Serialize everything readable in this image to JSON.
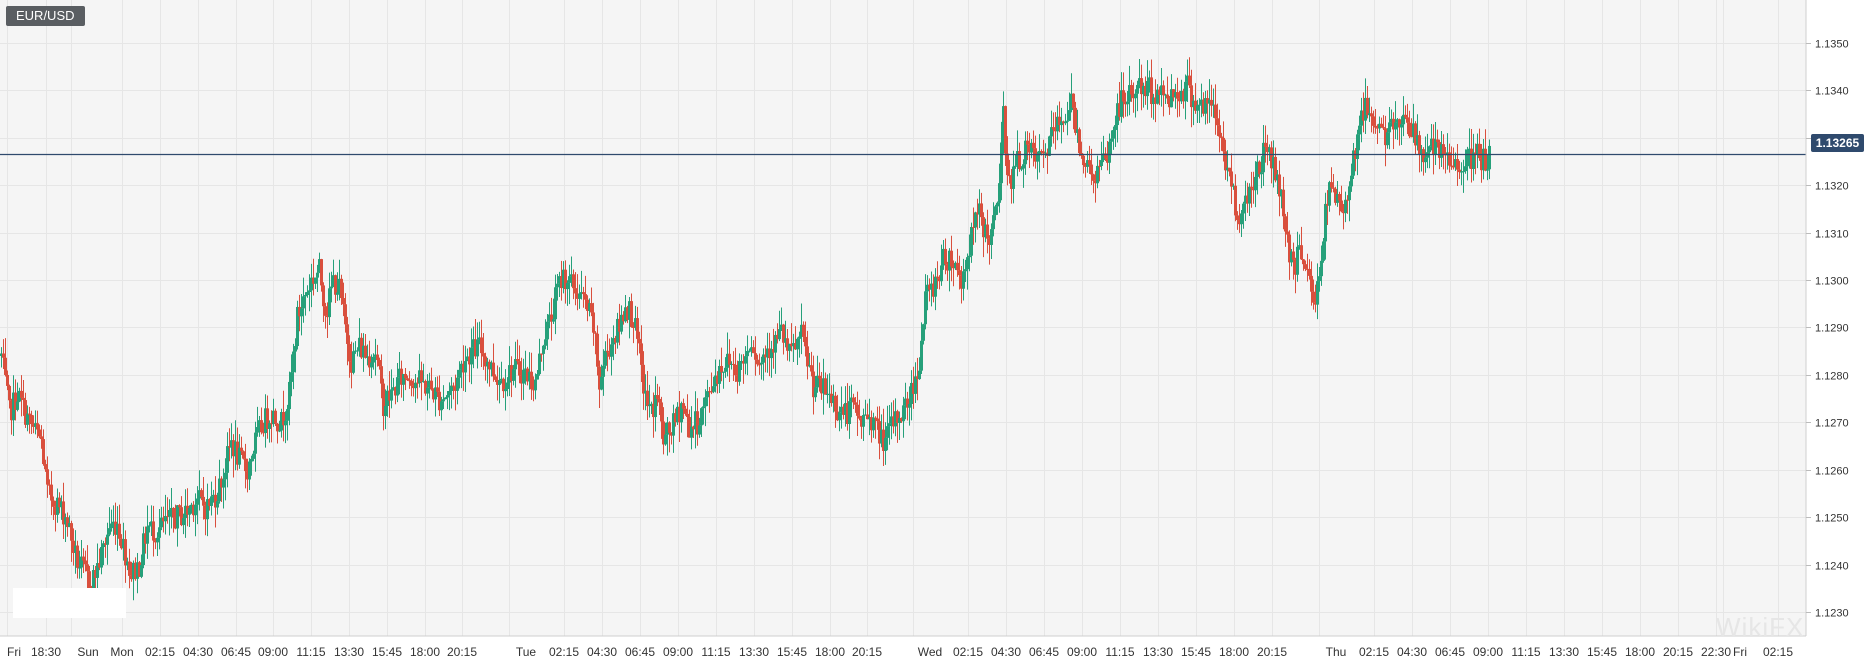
{
  "symbol": "EUR/USD",
  "last_price": "1.13265",
  "watermark": "WikiFX",
  "colors": {
    "up": "#26a07a",
    "down": "#d94f3d",
    "current_line": "#2f4a6d",
    "grid": "#e6e6e6",
    "background": "#f5f5f5"
  },
  "chart_data": {
    "type": "candlestick",
    "title": "EUR/USD",
    "ylim": [
      1.1225,
      1.1359
    ],
    "y_ticks": [
      "1.1230",
      "1.1240",
      "1.1250",
      "1.1260",
      "1.1270",
      "1.1280",
      "1.1290",
      "1.1300",
      "1.1310",
      "1.1320",
      "1.1330",
      "1.1340",
      "1.1350"
    ],
    "x_ticks": [
      "Fri",
      "18:30",
      "Sun",
      "Mon",
      "02:15",
      "04:30",
      "06:45",
      "09:00",
      "11:15",
      "13:30",
      "15:45",
      "18:00",
      "20:15",
      "Tue",
      "02:15",
      "04:30",
      "06:45",
      "09:00",
      "11:15",
      "13:30",
      "15:45",
      "18:00",
      "20:15",
      "Wed",
      "02:15",
      "04:30",
      "06:45",
      "09:00",
      "11:15",
      "13:30",
      "15:45",
      "18:00",
      "20:15",
      "Thu",
      "02:15",
      "04:30",
      "06:45",
      "09:00",
      "11:15",
      "13:30",
      "15:45",
      "18:00",
      "20:15",
      "22:30",
      "Fri",
      "02:15"
    ],
    "current_price": 1.13265,
    "grid": true,
    "close_path": [
      [
        0,
        1.1284
      ],
      [
        8,
        1.1272
      ],
      [
        16,
        1.1276
      ],
      [
        28,
        1.127
      ],
      [
        40,
        1.1266
      ],
      [
        46,
        1.1255
      ],
      [
        55,
        1.1253
      ],
      [
        65,
        1.125
      ],
      [
        75,
        1.1241
      ],
      [
        84,
        1.1238
      ],
      [
        90,
        1.1236
      ],
      [
        100,
        1.1242
      ],
      [
        108,
        1.1248
      ],
      [
        116,
        1.1249
      ],
      [
        122,
        1.1244
      ],
      [
        130,
        1.1238
      ],
      [
        138,
        1.124
      ],
      [
        146,
        1.1248
      ],
      [
        155,
        1.1247
      ],
      [
        165,
        1.1249
      ],
      [
        175,
        1.125
      ],
      [
        185,
        1.1251
      ],
      [
        195,
        1.1254
      ],
      [
        205,
        1.1252
      ],
      [
        215,
        1.1255
      ],
      [
        222,
        1.1259
      ],
      [
        230,
        1.1266
      ],
      [
        238,
        1.1262
      ],
      [
        246,
        1.126
      ],
      [
        254,
        1.1266
      ],
      [
        262,
        1.127
      ],
      [
        270,
        1.1272
      ],
      [
        280,
        1.127
      ],
      [
        288,
        1.1276
      ],
      [
        296,
        1.1292
      ],
      [
        302,
        1.1296
      ],
      [
        310,
        1.13
      ],
      [
        318,
        1.1302
      ],
      [
        325,
        1.1293
      ],
      [
        332,
        1.13
      ],
      [
        338,
        1.1298
      ],
      [
        344,
        1.129
      ],
      [
        350,
        1.1283
      ],
      [
        358,
        1.1286
      ],
      [
        366,
        1.1284
      ],
      [
        374,
        1.1285
      ],
      [
        382,
        1.1274
      ],
      [
        390,
        1.1276
      ],
      [
        398,
        1.1279
      ],
      [
        406,
        1.128
      ],
      [
        414,
        1.1279
      ],
      [
        422,
        1.1278
      ],
      [
        430,
        1.1277
      ],
      [
        438,
        1.1275
      ],
      [
        446,
        1.1276
      ],
      [
        454,
        1.1278
      ],
      [
        462,
        1.1283
      ],
      [
        470,
        1.1285
      ],
      [
        478,
        1.1286
      ],
      [
        486,
        1.1283
      ],
      [
        494,
        1.128
      ],
      [
        502,
        1.1279
      ],
      [
        510,
        1.1281
      ],
      [
        518,
        1.1281
      ],
      [
        526,
        1.128
      ],
      [
        534,
        1.1278
      ],
      [
        542,
        1.1288
      ],
      [
        550,
        1.1292
      ],
      [
        556,
        1.1298
      ],
      [
        562,
        1.1301
      ],
      [
        570,
        1.1299
      ],
      [
        578,
        1.1297
      ],
      [
        586,
        1.1294
      ],
      [
        592,
        1.129
      ],
      [
        598,
        1.1278
      ],
      [
        604,
        1.1284
      ],
      [
        612,
        1.1288
      ],
      [
        618,
        1.129
      ],
      [
        624,
        1.1295
      ],
      [
        632,
        1.1292
      ],
      [
        638,
        1.1284
      ],
      [
        644,
        1.1275
      ],
      [
        650,
        1.1272
      ],
      [
        656,
        1.1276
      ],
      [
        662,
        1.1266
      ],
      [
        668,
        1.1268
      ],
      [
        674,
        1.127
      ],
      [
        680,
        1.1274
      ],
      [
        688,
        1.1269
      ],
      [
        696,
        1.127
      ],
      [
        704,
        1.1274
      ],
      [
        712,
        1.1279
      ],
      [
        720,
        1.1282
      ],
      [
        728,
        1.1283
      ],
      [
        736,
        1.1281
      ],
      [
        744,
        1.1284
      ],
      [
        750,
        1.1288
      ],
      [
        758,
        1.1282
      ],
      [
        766,
        1.1286
      ],
      [
        774,
        1.1287
      ],
      [
        780,
        1.1289
      ],
      [
        788,
        1.1284
      ],
      [
        794,
        1.1286
      ],
      [
        800,
        1.1288
      ],
      [
        806,
        1.1283
      ],
      [
        812,
        1.1278
      ],
      [
        820,
        1.1277
      ],
      [
        828,
        1.1276
      ],
      [
        836,
        1.1273
      ],
      [
        844,
        1.1272
      ],
      [
        852,
        1.1273
      ],
      [
        860,
        1.127
      ],
      [
        868,
        1.1272
      ],
      [
        876,
        1.1268
      ],
      [
        884,
        1.1266
      ],
      [
        892,
        1.127
      ],
      [
        900,
        1.1272
      ],
      [
        906,
        1.1274
      ],
      [
        912,
        1.1278
      ],
      [
        918,
        1.1283
      ],
      [
        924,
        1.1296
      ],
      [
        930,
        1.1298
      ],
      [
        936,
        1.1301
      ],
      [
        942,
        1.1304
      ],
      [
        948,
        1.1305
      ],
      [
        954,
        1.1303
      ],
      [
        960,
        1.13
      ],
      [
        966,
        1.1305
      ],
      [
        972,
        1.1311
      ],
      [
        978,
        1.1314
      ],
      [
        984,
        1.131
      ],
      [
        990,
        1.1309
      ],
      [
        996,
        1.1316
      ],
      [
        1002,
        1.1334
      ],
      [
        1008,
        1.132
      ],
      [
        1014,
        1.1324
      ],
      [
        1020,
        1.1326
      ],
      [
        1026,
        1.1327
      ],
      [
        1032,
        1.1326
      ],
      [
        1040,
        1.1325
      ],
      [
        1046,
        1.1328
      ],
      [
        1052,
        1.1331
      ],
      [
        1058,
        1.1333
      ],
      [
        1064,
        1.1335
      ],
      [
        1070,
        1.1337
      ],
      [
        1076,
        1.1331
      ],
      [
        1082,
        1.1326
      ],
      [
        1088,
        1.1323
      ],
      [
        1094,
        1.1322
      ],
      [
        1100,
        1.1324
      ],
      [
        1106,
        1.1326
      ],
      [
        1112,
        1.1332
      ],
      [
        1118,
        1.1337
      ],
      [
        1124,
        1.1338
      ],
      [
        1130,
        1.1339
      ],
      [
        1136,
        1.1341
      ],
      [
        1142,
        1.134
      ],
      [
        1148,
        1.134
      ],
      [
        1156,
        1.1339
      ],
      [
        1164,
        1.1339
      ],
      [
        1172,
        1.1339
      ],
      [
        1180,
        1.134
      ],
      [
        1186,
        1.1341
      ],
      [
        1192,
        1.1338
      ],
      [
        1198,
        1.1337
      ],
      [
        1204,
        1.1336
      ],
      [
        1210,
        1.1337
      ],
      [
        1216,
        1.1333
      ],
      [
        1222,
        1.1327
      ],
      [
        1228,
        1.1322
      ],
      [
        1234,
        1.1316
      ],
      [
        1240,
        1.1313
      ],
      [
        1246,
        1.1318
      ],
      [
        1252,
        1.1321
      ],
      [
        1258,
        1.1324
      ],
      [
        1264,
        1.1328
      ],
      [
        1270,
        1.1326
      ],
      [
        1276,
        1.1321
      ],
      [
        1282,
        1.1315
      ],
      [
        1288,
        1.1306
      ],
      [
        1294,
        1.1303
      ],
      [
        1300,
        1.1307
      ],
      [
        1306,
        1.1302
      ],
      [
        1312,
        1.1294
      ],
      [
        1318,
        1.1301
      ],
      [
        1324,
        1.1314
      ],
      [
        1330,
        1.132
      ],
      [
        1336,
        1.1316
      ],
      [
        1342,
        1.1315
      ],
      [
        1348,
        1.1321
      ],
      [
        1354,
        1.1328
      ],
      [
        1360,
        1.1335
      ],
      [
        1366,
        1.1336
      ],
      [
        1372,
        1.1334
      ],
      [
        1378,
        1.1333
      ],
      [
        1384,
        1.133
      ],
      [
        1392,
        1.1332
      ],
      [
        1398,
        1.1334
      ],
      [
        1404,
        1.1335
      ],
      [
        1410,
        1.1332
      ],
      [
        1416,
        1.1328
      ],
      [
        1422,
        1.1327
      ],
      [
        1428,
        1.1328
      ],
      [
        1434,
        1.1327
      ],
      [
        1440,
        1.1326
      ],
      [
        1446,
        1.1325
      ],
      [
        1452,
        1.1324
      ],
      [
        1458,
        1.1325
      ],
      [
        1464,
        1.1325
      ],
      [
        1470,
        1.1325
      ],
      [
        1476,
        1.1326
      ],
      [
        1482,
        1.1325
      ],
      [
        1488,
        1.1326
      ]
    ]
  }
}
